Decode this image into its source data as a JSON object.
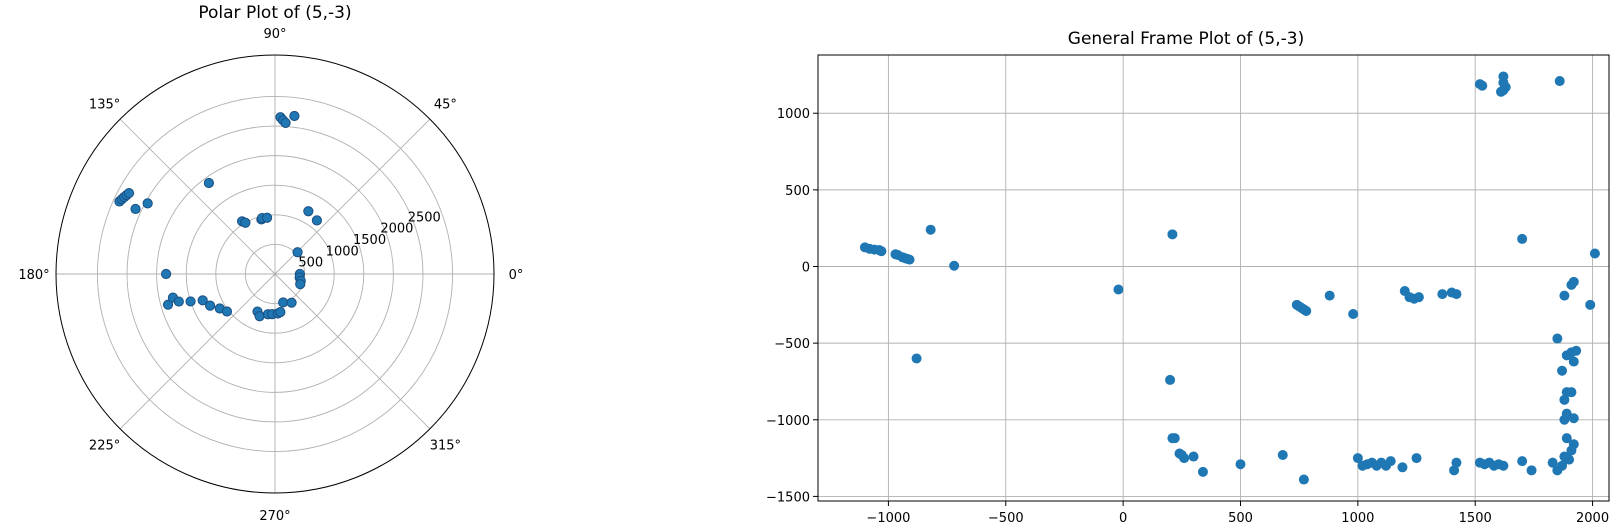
{
  "chart_data": [
    {
      "type": "scatter",
      "projection": "polar",
      "title": "Polar Plot of (5,-3)",
      "angle_tick_labels": [
        "0°",
        "45°",
        "90°",
        "135°",
        "180°",
        "225°",
        "270°",
        "315°"
      ],
      "radial_tick_labels": [
        "500",
        "1000",
        "1500",
        "2000",
        "2500"
      ],
      "rlim": [
        0,
        3700
      ],
      "grid": true,
      "points": [
        [
          155,
          2600
        ],
        [
          151,
          2460
        ],
        [
          155,
          2900
        ],
        [
          154,
          2880
        ],
        [
          153,
          2860
        ],
        [
          152,
          2840
        ],
        [
          151,
          2820
        ],
        [
          126,
          1900
        ],
        [
          122,
          1050
        ],
        [
          120,
          1000
        ],
        [
          104,
          950
        ],
        [
          103,
          970
        ],
        [
          98,
          960
        ],
        [
          88,
          2650
        ],
        [
          87,
          2600
        ],
        [
          86,
          2560
        ],
        [
          83,
          2690
        ],
        [
          62,
          1200
        ],
        [
          52,
          1150
        ],
        [
          44,
          530
        ],
        [
          0,
          420
        ],
        [
          352,
          420
        ],
        [
          345,
          450
        ],
        [
          338,
          460
        ],
        [
          180,
          1840
        ],
        [
          196,
          1880
        ],
        [
          193,
          1770
        ],
        [
          196,
          1690
        ],
        [
          198,
          1500
        ],
        [
          200,
          1300
        ],
        [
          206,
          1220
        ],
        [
          212,
          1100
        ],
        [
          218,
          1030
        ],
        [
          245,
          700
        ],
        [
          250,
          760
        ],
        [
          260,
          690
        ],
        [
          266,
          680
        ],
        [
          274,
          670
        ],
        [
          278,
          650
        ],
        [
          286,
          500
        ],
        [
          300,
          560
        ]
      ]
    },
    {
      "type": "scatter",
      "title": "General Frame Plot of (5,-3)",
      "xlim": [
        -1300,
        2070
      ],
      "ylim": [
        -1530,
        1380
      ],
      "x_ticks": [
        -1000,
        -500,
        0,
        500,
        1000,
        1500,
        2000
      ],
      "y_ticks": [
        -1500,
        -1000,
        -500,
        0,
        500,
        1000
      ],
      "x_tick_labels": [
        "−1000",
        "−500",
        "0",
        "500",
        "1000",
        "1500",
        "2000"
      ],
      "y_tick_labels": [
        "−1500",
        "−1000",
        "−500",
        "0",
        "500",
        "1000"
      ],
      "grid": true,
      "points": [
        [
          -1100,
          125
        ],
        [
          -1080,
          115
        ],
        [
          -1060,
          110
        ],
        [
          -1040,
          108
        ],
        [
          -1030,
          100
        ],
        [
          -970,
          80
        ],
        [
          -960,
          75
        ],
        [
          -940,
          60
        ],
        [
          -930,
          55
        ],
        [
          -920,
          50
        ],
        [
          -910,
          45
        ],
        [
          -820,
          240
        ],
        [
          -720,
          5
        ],
        [
          -880,
          -600
        ],
        [
          -20,
          -150
        ],
        [
          210,
          210
        ],
        [
          200,
          -740
        ],
        [
          210,
          -1120
        ],
        [
          220,
          -1120
        ],
        [
          240,
          -1220
        ],
        [
          250,
          -1230
        ],
        [
          260,
          -1250
        ],
        [
          300,
          -1240
        ],
        [
          340,
          -1340
        ],
        [
          500,
          -1290
        ],
        [
          680,
          -1230
        ],
        [
          770,
          -1390
        ],
        [
          740,
          -250
        ],
        [
          750,
          -260
        ],
        [
          760,
          -270
        ],
        [
          770,
          -280
        ],
        [
          780,
          -290
        ],
        [
          880,
          -190
        ],
        [
          980,
          -310
        ],
        [
          1000,
          -1250
        ],
        [
          1020,
          -1300
        ],
        [
          1040,
          -1290
        ],
        [
          1060,
          -1280
        ],
        [
          1080,
          -1300
        ],
        [
          1100,
          -1280
        ],
        [
          1120,
          -1300
        ],
        [
          1140,
          -1270
        ],
        [
          1190,
          -1310
        ],
        [
          1200,
          -160
        ],
        [
          1220,
          -200
        ],
        [
          1240,
          -210
        ],
        [
          1250,
          -1250
        ],
        [
          1260,
          -200
        ],
        [
          1360,
          -180
        ],
        [
          1400,
          -170
        ],
        [
          1420,
          -180
        ],
        [
          1410,
          -1330
        ],
        [
          1420,
          -1280
        ],
        [
          1520,
          -1280
        ],
        [
          1540,
          -1290
        ],
        [
          1560,
          -1280
        ],
        [
          1580,
          -1300
        ],
        [
          1600,
          -1290
        ],
        [
          1620,
          -1300
        ],
        [
          1700,
          -1270
        ],
        [
          1740,
          -1330
        ],
        [
          1830,
          -1280
        ],
        [
          1850,
          -1330
        ],
        [
          1870,
          -1300
        ],
        [
          1880,
          -1240
        ],
        [
          1900,
          -1260
        ],
        [
          1910,
          -1200
        ],
        [
          1920,
          -1160
        ],
        [
          1890,
          -1120
        ],
        [
          1880,
          -1000
        ],
        [
          1890,
          -960
        ],
        [
          1920,
          -990
        ],
        [
          1880,
          -870
        ],
        [
          1890,
          -820
        ],
        [
          1910,
          -820
        ],
        [
          1870,
          -680
        ],
        [
          1890,
          -580
        ],
        [
          1910,
          -560
        ],
        [
          1930,
          -550
        ],
        [
          1920,
          -620
        ],
        [
          1850,
          -470
        ],
        [
          1880,
          -190
        ],
        [
          1910,
          -120
        ],
        [
          1920,
          -100
        ],
        [
          1990,
          -250
        ],
        [
          2010,
          85
        ],
        [
          1700,
          180
        ],
        [
          1520,
          1190
        ],
        [
          1530,
          1180
        ],
        [
          1620,
          1240
        ],
        [
          1620,
          1200
        ],
        [
          1630,
          1170
        ],
        [
          1620,
          1150
        ],
        [
          1610,
          1140
        ],
        [
          1860,
          1210
        ]
      ]
    }
  ]
}
